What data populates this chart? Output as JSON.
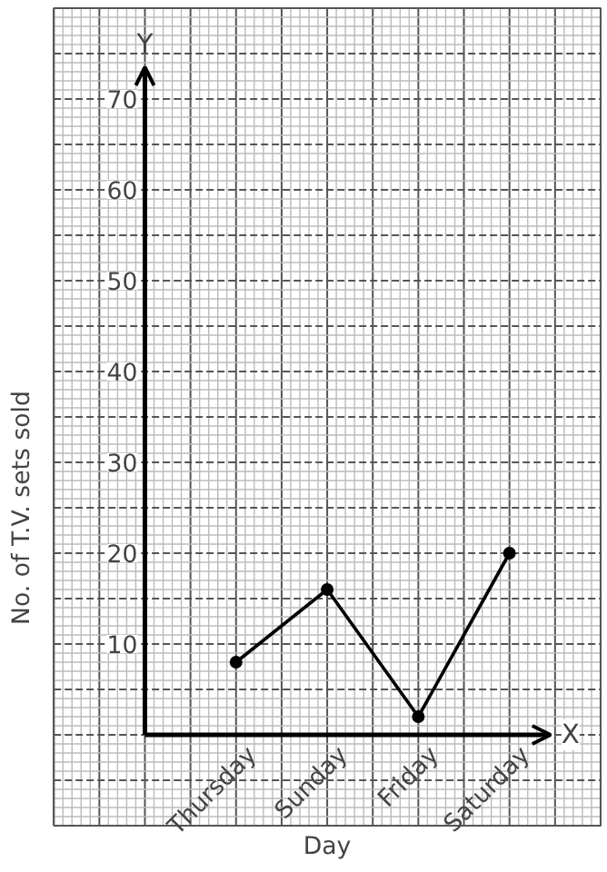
{
  "chart_data": {
    "type": "line",
    "xlabel": "Day",
    "ylabel": "No. of T.V. sets sold",
    "categories": [
      "Thursday",
      "Sunday",
      "Friday",
      "Saturday"
    ],
    "series": [
      {
        "color": "#000000",
        "values": [
          8,
          16,
          2,
          20
        ]
      }
    ],
    "ylim": [
      -10,
      80
    ],
    "yticks": [
      10,
      20,
      30,
      40,
      50,
      60,
      70
    ],
    "annotations": [
      "X",
      "Y"
    ],
    "grid": true,
    "marker": "circle",
    "line_style": "solid"
  }
}
